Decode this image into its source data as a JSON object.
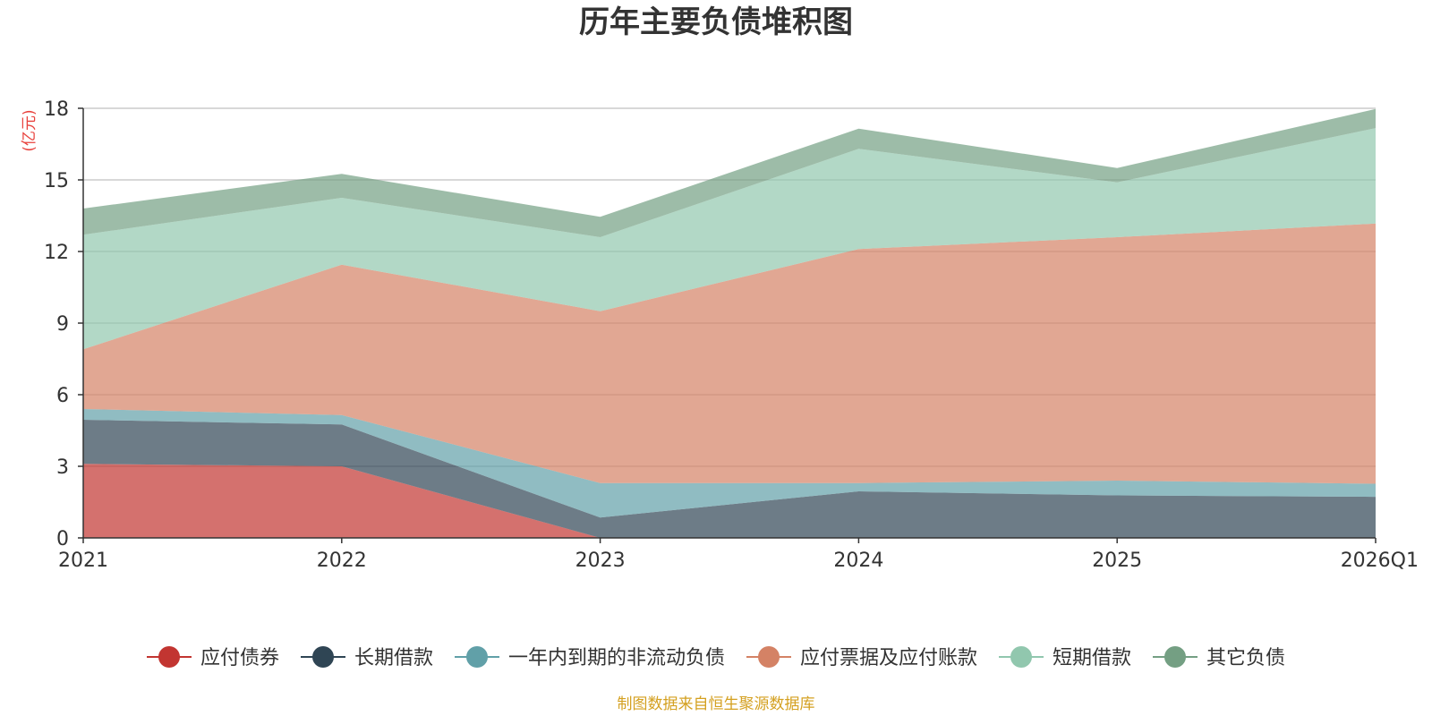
{
  "chart_data": {
    "type": "area",
    "stacked": true,
    "title": "历年主要负债堆积图",
    "ylabel": "(亿元)",
    "xlabel": "",
    "categories": [
      "2021",
      "2022",
      "2023",
      "2024",
      "2025",
      "2026Q1"
    ],
    "ylim": [
      0,
      18
    ],
    "yticks": [
      "0",
      "3",
      "6",
      "9",
      "12",
      "15",
      "18"
    ],
    "grid": true,
    "legend_position": "bottom",
    "series": [
      {
        "name": "应付债券",
        "color": "#c23531",
        "values": [
          3.1,
          3.0,
          0.0,
          0.0,
          0.0,
          0.0
        ]
      },
      {
        "name": "长期借款",
        "color": "#2f4554",
        "values": [
          1.85,
          1.75,
          0.85,
          1.95,
          1.78,
          1.72
        ]
      },
      {
        "name": "一年内到期的非流动负债",
        "color": "#61a0a8",
        "values": [
          0.45,
          0.4,
          1.45,
          0.35,
          0.62,
          0.55
        ]
      },
      {
        "name": "应付票据及应付账款",
        "color": "#d48265",
        "values": [
          2.5,
          6.3,
          7.2,
          9.8,
          10.2,
          10.9
        ]
      },
      {
        "name": "短期借款",
        "color": "#91c7ae",
        "values": [
          4.8,
          2.8,
          3.1,
          4.2,
          2.3,
          4.0
        ]
      },
      {
        "name": "其它负债",
        "color": "#749f83",
        "values": [
          1.1,
          1.0,
          0.85,
          0.85,
          0.6,
          0.8
        ]
      }
    ],
    "source": "制图数据来自恒生聚源数据库"
  }
}
